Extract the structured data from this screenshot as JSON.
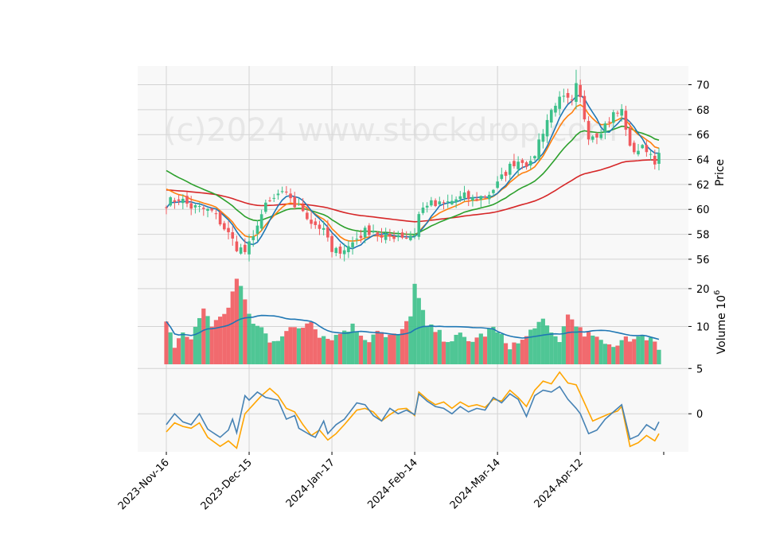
{
  "chart_data": {
    "type": "candlestick",
    "watermark": "(c)2024 www.stockdrop.com",
    "price_axis": {
      "label": "Price",
      "ylim": [
        54.4,
        71.5
      ],
      "ticks": [
        "56",
        "58",
        "60",
        "62",
        "64",
        "66",
        "68",
        "70"
      ]
    },
    "volume_axis": {
      "label": "Volume  10^6",
      "label_main": "Volume  10",
      "label_exp": "6",
      "ylim": [
        0,
        22.5
      ],
      "ticks": [
        "10",
        "20"
      ]
    },
    "indicator_axis": {
      "ylim": [
        -4.2,
        5.2
      ],
      "ticks": [
        "0",
        "5"
      ]
    },
    "x_tick_labels": [
      "2023-Nov-16",
      "2023-Dec-15",
      "2024-Jan-17",
      "2024-Feb-14",
      "2024-Mar-14",
      "2024-Apr-12"
    ],
    "x_tick_index": [
      0,
      20,
      40,
      60,
      80,
      100
    ],
    "n_bars": 120,
    "grid": true,
    "colors": {
      "up": "#3cc08a",
      "down": "#f05a5e",
      "ma_fast": "#1f77b4",
      "ma_mid": "#ff7f0e",
      "ma_slow": "#2ca02c",
      "ma_long": "#d62728",
      "volume_ma": "#1f77b4",
      "macd": "#4682b4",
      "signal": "#ffa500",
      "panel_bg": "#f8f8f8",
      "grid": "#d3d3d3"
    },
    "price_anchors": [
      [
        0,
        60.5
      ],
      [
        3,
        60.9
      ],
      [
        6,
        60.2
      ],
      [
        9,
        60.0
      ],
      [
        11,
        59.8
      ],
      [
        13,
        59.0
      ],
      [
        15,
        58.0
      ],
      [
        17,
        57.0
      ],
      [
        19,
        56.6
      ],
      [
        21,
        57.6
      ],
      [
        22,
        59.0
      ],
      [
        24,
        60.2
      ],
      [
        26,
        60.8
      ],
      [
        27,
        61.2
      ],
      [
        30,
        61.0
      ],
      [
        31,
        60.3
      ],
      [
        33,
        60.0
      ],
      [
        35,
        59.0
      ],
      [
        37,
        58.6
      ],
      [
        39,
        57.7
      ],
      [
        40,
        56.4
      ],
      [
        42,
        56.8
      ],
      [
        44,
        57.0
      ],
      [
        46,
        57.7
      ],
      [
        48,
        58.2
      ],
      [
        50,
        58.4
      ],
      [
        52,
        57.6
      ],
      [
        54,
        57.8
      ],
      [
        56,
        58.0
      ],
      [
        58,
        57.8
      ],
      [
        60,
        58.1
      ],
      [
        61,
        59.6
      ],
      [
        63,
        60.5
      ],
      [
        65,
        60.3
      ],
      [
        67,
        60.4
      ],
      [
        70,
        60.8
      ],
      [
        72,
        61.0
      ],
      [
        74,
        60.8
      ],
      [
        76,
        61.0
      ],
      [
        78,
        61.3
      ],
      [
        80,
        62.0
      ],
      [
        82,
        63.0
      ],
      [
        84,
        63.8
      ],
      [
        86,
        64.0
      ],
      [
        88,
        63.5
      ],
      [
        90,
        65.5
      ],
      [
        92,
        67.2
      ],
      [
        94,
        68.6
      ],
      [
        96,
        68.8
      ],
      [
        98,
        68.5
      ],
      [
        99,
        69.8
      ],
      [
        100,
        68.8
      ],
      [
        102,
        66.0
      ],
      [
        104,
        66.1
      ],
      [
        106,
        66.8
      ],
      [
        108,
        67.6
      ],
      [
        110,
        67.9
      ],
      [
        111,
        66.6
      ],
      [
        112,
        64.8
      ],
      [
        114,
        64.8
      ],
      [
        116,
        64.9
      ],
      [
        118,
        64.0
      ],
      [
        119,
        64.2
      ]
    ],
    "volume_anchors": [
      [
        0,
        10.5
      ],
      [
        2,
        5.0
      ],
      [
        4,
        8.5
      ],
      [
        6,
        6.5
      ],
      [
        9,
        15.0
      ],
      [
        11,
        10.5
      ],
      [
        13,
        12.0
      ],
      [
        15,
        15.5
      ],
      [
        17,
        22.5
      ],
      [
        19,
        17.0
      ],
      [
        21,
        10.5
      ],
      [
        23,
        9.5
      ],
      [
        25,
        6.5
      ],
      [
        27,
        7.0
      ],
      [
        29,
        8.5
      ],
      [
        31,
        9.5
      ],
      [
        33,
        10.0
      ],
      [
        35,
        12.0
      ],
      [
        37,
        8.0
      ],
      [
        39,
        7.0
      ],
      [
        41,
        7.5
      ],
      [
        43,
        9.0
      ],
      [
        45,
        10.0
      ],
      [
        47,
        8.0
      ],
      [
        49,
        6.5
      ],
      [
        51,
        9.5
      ],
      [
        53,
        7.0
      ],
      [
        55,
        7.5
      ],
      [
        57,
        8.5
      ],
      [
        59,
        13.5
      ],
      [
        60,
        21.0
      ],
      [
        61,
        17.0
      ],
      [
        63,
        10.0
      ],
      [
        65,
        9.0
      ],
      [
        67,
        7.0
      ],
      [
        69,
        6.5
      ],
      [
        71,
        7.5
      ],
      [
        73,
        6.0
      ],
      [
        75,
        7.0
      ],
      [
        77,
        8.0
      ],
      [
        79,
        9.5
      ],
      [
        81,
        7.0
      ],
      [
        83,
        5.0
      ],
      [
        85,
        5.5
      ],
      [
        87,
        7.0
      ],
      [
        89,
        10.5
      ],
      [
        91,
        11.0
      ],
      [
        93,
        8.0
      ],
      [
        95,
        6.5
      ],
      [
        97,
        13.0
      ],
      [
        99,
        11.0
      ],
      [
        101,
        7.0
      ],
      [
        103,
        8.0
      ],
      [
        105,
        5.5
      ],
      [
        107,
        5.0
      ],
      [
        109,
        5.5
      ],
      [
        111,
        7.5
      ],
      [
        113,
        6.5
      ],
      [
        115,
        7.0
      ],
      [
        117,
        7.5
      ],
      [
        119,
        4.0
      ]
    ],
    "macd_anchors": [
      [
        0,
        -1.2
      ],
      [
        2,
        0.0
      ],
      [
        4,
        -0.9
      ],
      [
        6,
        -1.2
      ],
      [
        8,
        0.0
      ],
      [
        10,
        -1.7
      ],
      [
        13,
        -2.6
      ],
      [
        15,
        -1.8
      ],
      [
        16,
        -0.6
      ],
      [
        17,
        -2.1
      ],
      [
        19,
        2.0
      ],
      [
        20,
        1.5
      ],
      [
        22,
        2.4
      ],
      [
        24,
        1.8
      ],
      [
        27,
        1.5
      ],
      [
        29,
        -0.6
      ],
      [
        31,
        -0.2
      ],
      [
        32,
        -1.6
      ],
      [
        35,
        -2.4
      ],
      [
        36,
        -2.6
      ],
      [
        38,
        -0.8
      ],
      [
        39,
        -2.2
      ],
      [
        41,
        -1.2
      ],
      [
        43,
        -0.6
      ],
      [
        46,
        1.2
      ],
      [
        48,
        1.0
      ],
      [
        50,
        -0.2
      ],
      [
        52,
        -0.8
      ],
      [
        54,
        0.6
      ],
      [
        56,
        0.0
      ],
      [
        58,
        0.4
      ],
      [
        60,
        -0.1
      ],
      [
        61,
        2.2
      ],
      [
        63,
        1.4
      ],
      [
        65,
        0.8
      ],
      [
        67,
        0.6
      ],
      [
        69,
        0.0
      ],
      [
        71,
        0.8
      ],
      [
        73,
        0.2
      ],
      [
        75,
        0.6
      ],
      [
        77,
        0.4
      ],
      [
        79,
        1.8
      ],
      [
        81,
        1.2
      ],
      [
        83,
        2.2
      ],
      [
        85,
        1.6
      ],
      [
        87,
        -0.3
      ],
      [
        89,
        2.0
      ],
      [
        91,
        2.6
      ],
      [
        93,
        2.4
      ],
      [
        95,
        3.0
      ],
      [
        97,
        1.6
      ],
      [
        99,
        0.6
      ],
      [
        100,
        0.0
      ],
      [
        102,
        -2.2
      ],
      [
        104,
        -1.8
      ],
      [
        106,
        -0.6
      ],
      [
        108,
        0.2
      ],
      [
        110,
        1.0
      ],
      [
        112,
        -2.8
      ],
      [
        114,
        -2.4
      ],
      [
        116,
        -1.2
      ],
      [
        118,
        -1.8
      ],
      [
        119,
        -0.9
      ]
    ],
    "signal_anchors": [
      [
        0,
        -2.0
      ],
      [
        2,
        -1.0
      ],
      [
        4,
        -1.4
      ],
      [
        6,
        -1.6
      ],
      [
        8,
        -1.0
      ],
      [
        10,
        -2.6
      ],
      [
        13,
        -3.6
      ],
      [
        15,
        -3.0
      ],
      [
        17,
        -3.8
      ],
      [
        19,
        0.0
      ],
      [
        21,
        1.0
      ],
      [
        23,
        2.0
      ],
      [
        25,
        2.8
      ],
      [
        27,
        2.0
      ],
      [
        29,
        0.6
      ],
      [
        31,
        0.2
      ],
      [
        33,
        -1.2
      ],
      [
        35,
        -2.4
      ],
      [
        37,
        -1.8
      ],
      [
        39,
        -2.9
      ],
      [
        41,
        -2.2
      ],
      [
        43,
        -1.2
      ],
      [
        46,
        0.4
      ],
      [
        48,
        0.6
      ],
      [
        50,
        0.2
      ],
      [
        52,
        -0.8
      ],
      [
        54,
        -0.1
      ],
      [
        56,
        0.5
      ],
      [
        58,
        0.6
      ],
      [
        60,
        -0.2
      ],
      [
        61,
        2.4
      ],
      [
        63,
        1.6
      ],
      [
        65,
        1.0
      ],
      [
        67,
        1.3
      ],
      [
        69,
        0.6
      ],
      [
        71,
        1.3
      ],
      [
        73,
        0.8
      ],
      [
        75,
        1.0
      ],
      [
        77,
        0.7
      ],
      [
        79,
        1.6
      ],
      [
        81,
        1.4
      ],
      [
        83,
        2.6
      ],
      [
        85,
        1.8
      ],
      [
        87,
        0.8
      ],
      [
        89,
        2.6
      ],
      [
        91,
        3.6
      ],
      [
        93,
        3.3
      ],
      [
        95,
        4.6
      ],
      [
        97,
        3.4
      ],
      [
        99,
        3.2
      ],
      [
        101,
        1.2
      ],
      [
        103,
        -0.8
      ],
      [
        105,
        -0.4
      ],
      [
        107,
        0.0
      ],
      [
        109,
        0.3
      ],
      [
        110,
        0.8
      ],
      [
        112,
        -3.6
      ],
      [
        114,
        -3.2
      ],
      [
        116,
        -2.4
      ],
      [
        118,
        -3.0
      ],
      [
        119,
        -2.2
      ]
    ]
  }
}
